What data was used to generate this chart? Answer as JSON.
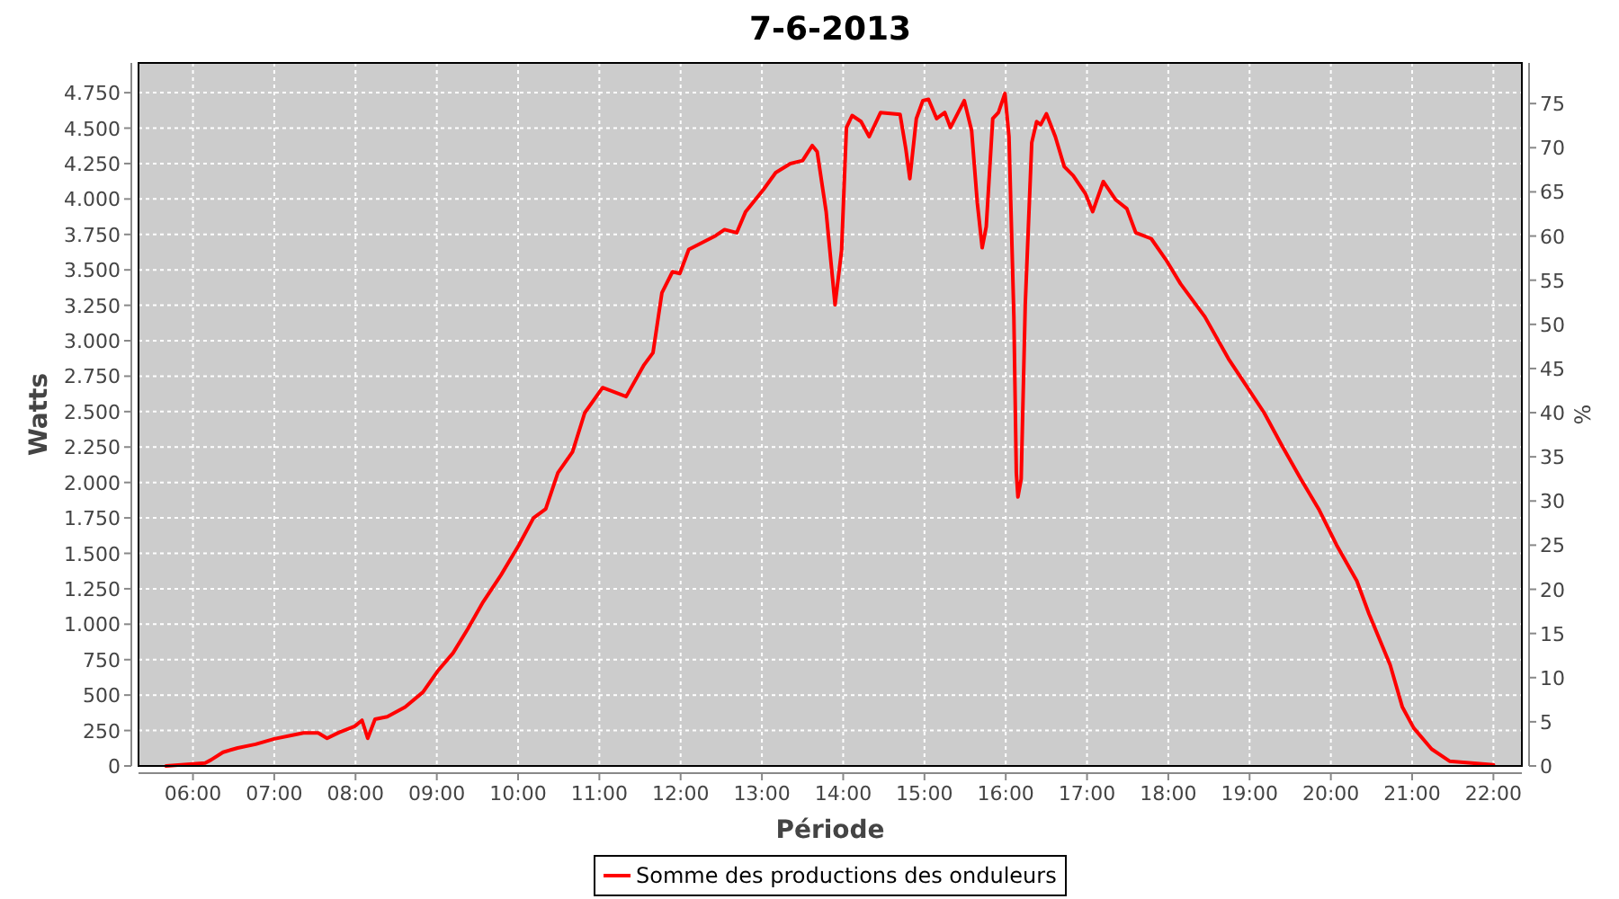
{
  "chart_data": {
    "type": "line",
    "title": "7-6-2013",
    "xlabel": "Période",
    "ylabel": "Watts",
    "y2label": "%",
    "xlim": [
      5.33,
      22.35
    ],
    "xticks": [
      {
        "value": 6,
        "label": "06:00"
      },
      {
        "value": 7,
        "label": "07:00"
      },
      {
        "value": 8,
        "label": "08:00"
      },
      {
        "value": 9,
        "label": "09:00"
      },
      {
        "value": 10,
        "label": "10:00"
      },
      {
        "value": 11,
        "label": "11:00"
      },
      {
        "value": 12,
        "label": "12:00"
      },
      {
        "value": 13,
        "label": "13:00"
      },
      {
        "value": 14,
        "label": "14:00"
      },
      {
        "value": 15,
        "label": "15:00"
      },
      {
        "value": 16,
        "label": "16:00"
      },
      {
        "value": 17,
        "label": "17:00"
      },
      {
        "value": 18,
        "label": "18:00"
      },
      {
        "value": 19,
        "label": "19:00"
      },
      {
        "value": 20,
        "label": "20:00"
      },
      {
        "value": 21,
        "label": "21:00"
      },
      {
        "value": 22,
        "label": "22:00"
      }
    ],
    "ylim": [
      0,
      4960
    ],
    "yticks": [
      0,
      250,
      500,
      750,
      {
        "value": 1000,
        "label": "1.000"
      },
      {
        "value": 1250,
        "label": "1.250"
      },
      {
        "value": 1500,
        "label": "1.500"
      },
      {
        "value": 1750,
        "label": "1.750"
      },
      {
        "value": 2000,
        "label": "2.000"
      },
      {
        "value": 2250,
        "label": "2.250"
      },
      {
        "value": 2500,
        "label": "2.500"
      },
      {
        "value": 2750,
        "label": "2.750"
      },
      {
        "value": 3000,
        "label": "3.000"
      },
      {
        "value": 3250,
        "label": "3.250"
      },
      {
        "value": 3500,
        "label": "3.500"
      },
      {
        "value": 3750,
        "label": "3.750"
      },
      {
        "value": 4000,
        "label": "4.000"
      },
      {
        "value": 4250,
        "label": "4.250"
      },
      {
        "value": 4500,
        "label": "4.500"
      },
      {
        "value": 4750,
        "label": "4.750"
      }
    ],
    "y2lim": [
      0,
      79.6
    ],
    "y2ticks": [
      0,
      5,
      10,
      15,
      20,
      25,
      30,
      35,
      40,
      45,
      50,
      55,
      60,
      65,
      70,
      75
    ],
    "grid": true,
    "legend": "bottom",
    "marker": "none",
    "line_style": "solid",
    "series": [
      {
        "name": "Somme des productions des onduleurs",
        "color": "#ff0000",
        "x": [
          5.67,
          6.15,
          6.22,
          6.37,
          6.55,
          6.77,
          7.0,
          7.21,
          7.36,
          7.54,
          7.65,
          7.8,
          7.99,
          8.08,
          8.15,
          8.24,
          8.39,
          8.61,
          8.83,
          9.01,
          9.2,
          9.38,
          9.57,
          9.79,
          10.01,
          10.19,
          10.34,
          10.49,
          10.67,
          10.82,
          11.04,
          11.33,
          11.55,
          11.66,
          11.77,
          11.9,
          11.99,
          12.1,
          12.43,
          12.54,
          12.69,
          12.8,
          13.02,
          13.17,
          13.35,
          13.5,
          13.62,
          13.68,
          13.79,
          13.9,
          13.98,
          14.04,
          14.11,
          14.22,
          14.32,
          14.46,
          14.7,
          14.77,
          14.82,
          14.9,
          14.98,
          15.05,
          15.15,
          15.25,
          15.32,
          15.49,
          15.58,
          15.65,
          15.71,
          15.76,
          15.84,
          15.91,
          15.99,
          16.04,
          16.1,
          16.13,
          16.15,
          16.19,
          16.24,
          16.32,
          16.38,
          16.43,
          16.5,
          16.61,
          16.72,
          16.83,
          16.98,
          17.07,
          17.2,
          17.35,
          17.49,
          17.6,
          17.79,
          17.97,
          18.15,
          18.45,
          18.74,
          18.96,
          19.18,
          19.4,
          19.63,
          19.85,
          20.07,
          20.32,
          20.47,
          20.73,
          20.88,
          21.02,
          21.24,
          21.46,
          22.0
        ],
        "values": [
          0,
          21,
          42,
          97,
          127,
          153,
          191,
          216,
          233,
          233,
          195,
          237,
          280,
          322,
          195,
          330,
          347,
          415,
          521,
          669,
          797,
          966,
          1157,
          1347,
          1559,
          1750,
          1813,
          2068,
          2216,
          2491,
          2669,
          2606,
          2830,
          2915,
          3339,
          3487,
          3474,
          3644,
          3741,
          3784,
          3762,
          3911,
          4067,
          4186,
          4250,
          4271,
          4377,
          4334,
          3911,
          3254,
          3636,
          4504,
          4589,
          4546,
          4440,
          4610,
          4597,
          4356,
          4144,
          4567,
          4694,
          4703,
          4567,
          4610,
          4504,
          4694,
          4483,
          3974,
          3656,
          3805,
          4567,
          4610,
          4745,
          4440,
          3169,
          2068,
          1898,
          2025,
          3254,
          4398,
          4546,
          4525,
          4601,
          4440,
          4228,
          4165,
          4038,
          3911,
          4123,
          3996,
          3932,
          3762,
          3720,
          3572,
          3402,
          3169,
          2873,
          2682,
          2491,
          2258,
          2025,
          1813,
          1559,
          1305,
          1072,
          712,
          415,
          267,
          119,
          34,
          8
        ]
      }
    ]
  }
}
